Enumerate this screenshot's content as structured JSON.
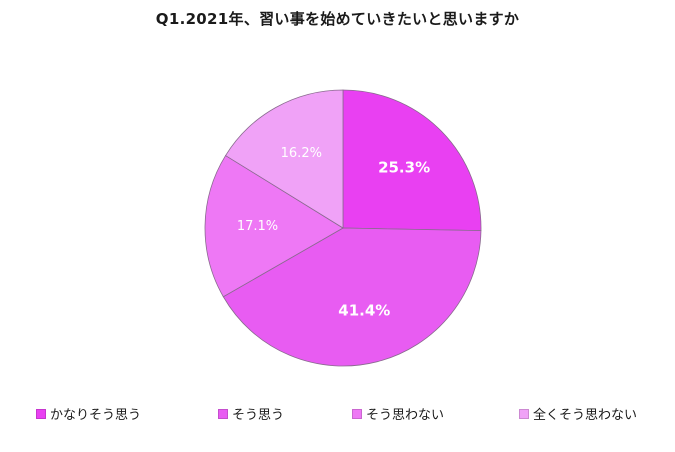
{
  "chart_data": {
    "type": "pie",
    "title": "Q1.2021年、習い事を始めていきたいと思いますか",
    "categories": [
      "かなりそう思う",
      "そう思う",
      "そう思わない",
      "全くそう思わない"
    ],
    "values": [
      25.3,
      41.4,
      17.1,
      16.2
    ],
    "value_labels": [
      "25.3%",
      "41.4%",
      "17.1%",
      "16.2%"
    ],
    "colors": [
      "#E940F2",
      "#E85CF2",
      "#EE78F5",
      "#F0A2F7"
    ],
    "label_colors": [
      "#ffffff",
      "#ffffff",
      "#ffffff",
      "#ffffff"
    ],
    "label_bold": [
      true,
      true,
      false,
      false
    ],
    "start_angle_deg": 0,
    "direction": "clockwise",
    "legend_position": "bottom"
  }
}
